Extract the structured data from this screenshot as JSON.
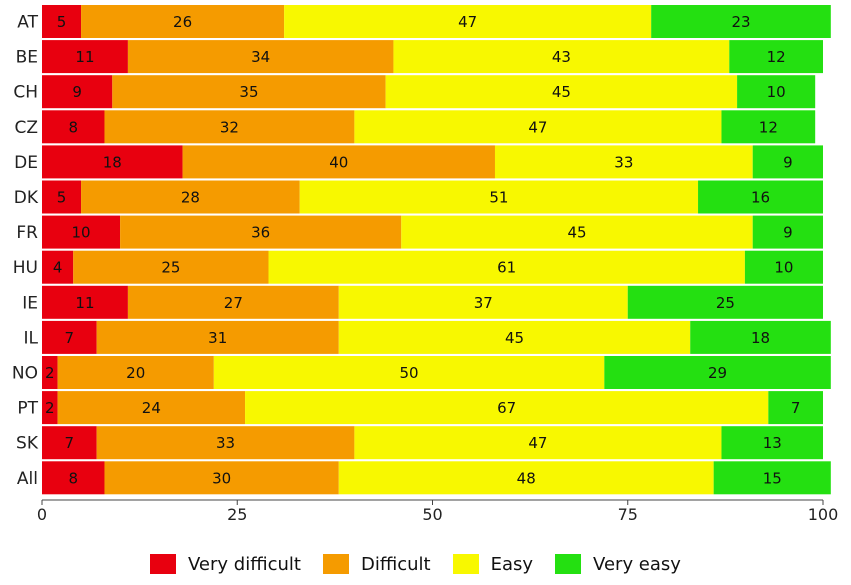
{
  "chart_data": {
    "type": "bar",
    "orientation": "horizontal",
    "stacked": true,
    "categories": [
      "AT",
      "BE",
      "CH",
      "CZ",
      "DE",
      "DK",
      "FR",
      "HU",
      "IE",
      "IL",
      "NO",
      "PT",
      "SK",
      "All"
    ],
    "series": [
      {
        "name": "Very difficult",
        "color": "#e8000f",
        "values": [
          5,
          11,
          9,
          8,
          18,
          5,
          10,
          4,
          11,
          7,
          2,
          2,
          7,
          8
        ]
      },
      {
        "name": "Difficult",
        "color": "#f59b00",
        "values": [
          26,
          34,
          35,
          32,
          40,
          28,
          36,
          25,
          27,
          31,
          20,
          24,
          33,
          30
        ]
      },
      {
        "name": "Easy",
        "color": "#f8f800",
        "values": [
          47,
          43,
          45,
          47,
          33,
          51,
          45,
          61,
          37,
          45,
          50,
          67,
          47,
          48
        ]
      },
      {
        "name": "Very easy",
        "color": "#24e011",
        "values": [
          23,
          12,
          10,
          12,
          9,
          16,
          9,
          10,
          25,
          18,
          29,
          7,
          13,
          15
        ]
      }
    ],
    "xlim": [
      0,
      100
    ],
    "xticks": [
      0,
      25,
      50,
      75,
      100
    ],
    "grid": false,
    "legend_position": "bottom"
  }
}
